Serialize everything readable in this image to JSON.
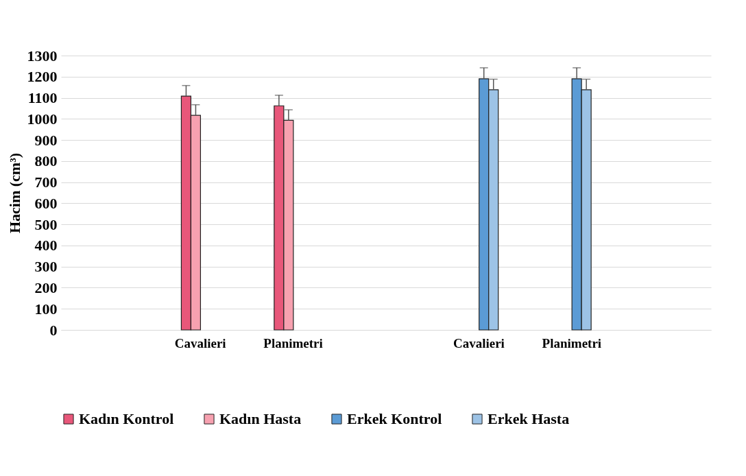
{
  "chart_data": {
    "type": "bar",
    "ylabel": "Hacim (cm³)",
    "categories": [
      null,
      "Cavalieri",
      "Planimetri",
      null,
      "Cavalieri",
      "Planimetri",
      null
    ],
    "series": [
      {
        "name": "Kadın Kontrol",
        "color": "#e8577a",
        "values": [
          null,
          1108,
          1062,
          null,
          null,
          null,
          null
        ],
        "errors": [
          null,
          50,
          50,
          null,
          null,
          null,
          null
        ]
      },
      {
        "name": "Kadın Hasta",
        "color": "#f7a1b0",
        "values": [
          null,
          1017,
          993,
          null,
          null,
          null,
          null
        ],
        "errors": [
          null,
          50,
          50,
          null,
          null,
          null,
          null
        ]
      },
      {
        "name": "Erkek Kontrol",
        "color": "#5b9bd5",
        "values": [
          null,
          null,
          null,
          null,
          1190,
          1190,
          null
        ],
        "errors": [
          null,
          null,
          null,
          null,
          52,
          52,
          null
        ]
      },
      {
        "name": "Erkek Hasta",
        "color": "#9dc3e6",
        "values": [
          null,
          null,
          null,
          null,
          1138,
          1138,
          null
        ],
        "errors": [
          null,
          null,
          null,
          null,
          50,
          50,
          null
        ]
      }
    ],
    "ylim": [
      0,
      1300
    ],
    "yticks": [
      0,
      100,
      200,
      300,
      400,
      500,
      600,
      700,
      800,
      900,
      1000,
      1100,
      1200,
      1300
    ],
    "grid": "y",
    "legend": "bottom"
  }
}
